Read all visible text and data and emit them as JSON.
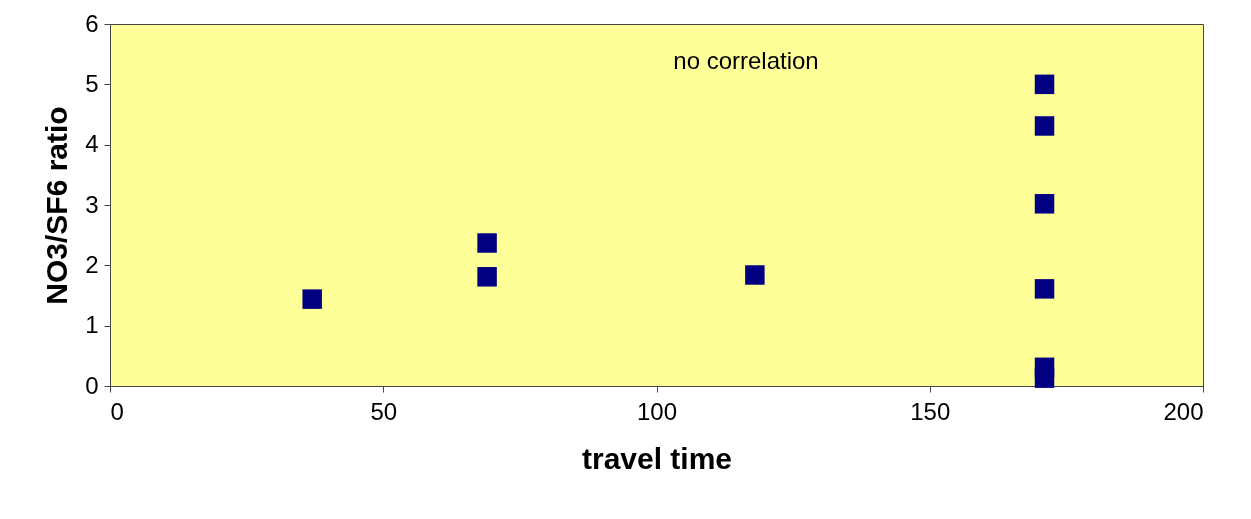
{
  "chart_data": {
    "type": "scatter",
    "xlabel": "travel time",
    "ylabel": "NO3/SF6   ratio",
    "x": [
      37,
      69,
      69,
      118,
      171,
      171,
      171,
      171,
      171,
      171
    ],
    "series": [
      {
        "color": "#000080",
        "values": [
          1.44,
          2.37,
          1.81,
          1.84,
          5.0,
          4.31,
          3.02,
          1.61,
          0.31,
          0.13
        ]
      }
    ],
    "xlim": [
      0,
      200
    ],
    "xticks": [
      0,
      50,
      100,
      150,
      200
    ],
    "ylim": [
      0,
      6
    ],
    "yticks": [
      0,
      1,
      2,
      3,
      4,
      5,
      6
    ],
    "marker": "square",
    "grid": false,
    "legend": false,
    "annotations": [
      "no correlation"
    ]
  }
}
